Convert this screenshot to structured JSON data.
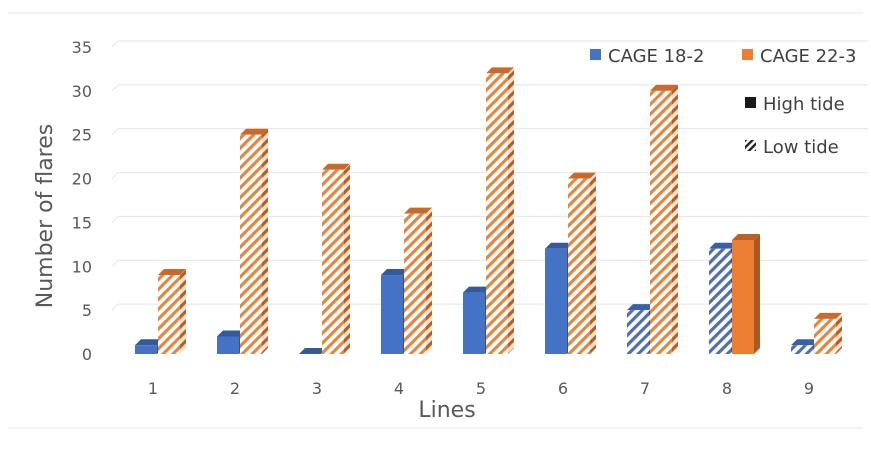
{
  "chart_data": {
    "type": "bar",
    "title": "",
    "xlabel": "Lines",
    "ylabel": "Number of flares",
    "ylim": [
      0,
      35
    ],
    "yticks": [
      0,
      5,
      10,
      15,
      20,
      25,
      30,
      35
    ],
    "categories": [
      "1",
      "2",
      "3",
      "4",
      "5",
      "6",
      "7",
      "8",
      "9"
    ],
    "grid": true,
    "legend_position": "top-right",
    "series": [
      {
        "name": "CAGE 18-2",
        "color": "#4472C4",
        "values": [
          1,
          2,
          0,
          9,
          7,
          12,
          5,
          12,
          1
        ],
        "tide": [
          "high",
          "high",
          "high",
          "high",
          "high",
          "high",
          "low",
          "low",
          "low"
        ]
      },
      {
        "name": "CAGE 22-3",
        "color": "#ED7D31",
        "values": [
          9,
          25,
          21,
          16,
          32,
          20,
          30,
          13,
          4
        ],
        "tide": [
          "low",
          "low",
          "low",
          "low",
          "low",
          "low",
          "low",
          "high",
          "low"
        ]
      }
    ],
    "pattern_legend": [
      {
        "label": "High tide",
        "pattern": "solid"
      },
      {
        "label": "Low tide",
        "pattern": "hatched"
      }
    ]
  }
}
